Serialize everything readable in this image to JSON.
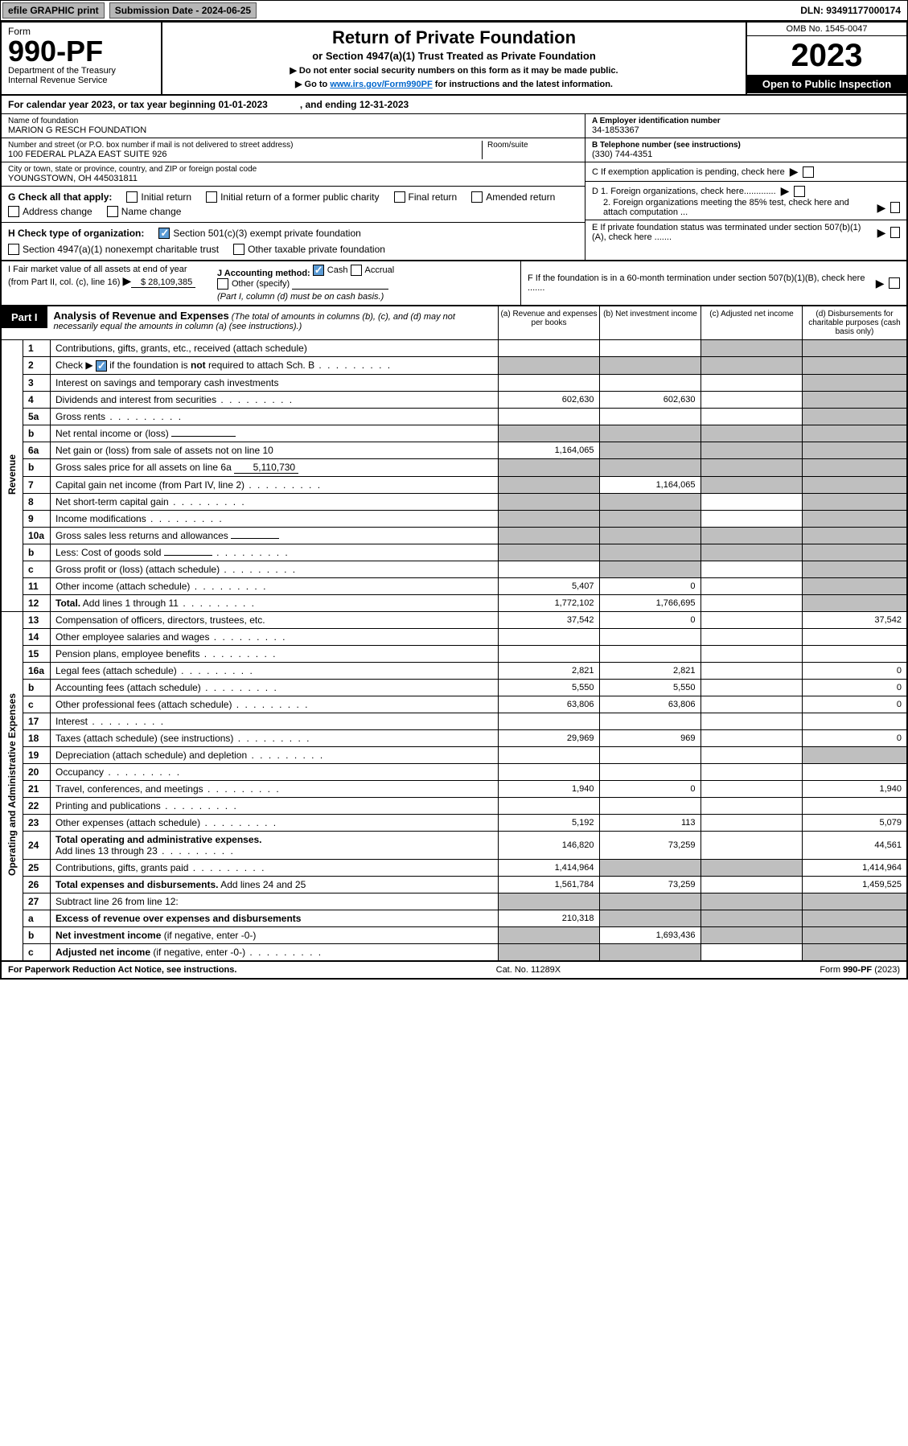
{
  "topbar": {
    "efile": "efile GRAPHIC print",
    "sub_label": "Submission Date - 2024-06-25",
    "dln": "DLN: 93491177000174"
  },
  "header": {
    "form_word": "Form",
    "form_no": "990-PF",
    "dept": "Department of the Treasury",
    "irs": "Internal Revenue Service",
    "title": "Return of Private Foundation",
    "subtitle": "or Section 4947(a)(1) Trust Treated as Private Foundation",
    "note1": "▶ Do not enter social security numbers on this form as it may be made public.",
    "note2_pre": "▶ Go to ",
    "note2_link": "www.irs.gov/Form990PF",
    "note2_post": " for instructions and the latest information.",
    "omb": "OMB No. 1545-0047",
    "year": "2023",
    "open": "Open to Public Inspection"
  },
  "cal": {
    "text": "For calendar year 2023, or tax year beginning 01-01-2023",
    "end": ", and ending 12-31-2023"
  },
  "id": {
    "name_lbl": "Name of foundation",
    "name": "MARION G RESCH FOUNDATION",
    "addr_lbl": "Number and street (or P.O. box number if mail is not delivered to street address)",
    "addr": "100 FEDERAL PLAZA EAST SUITE 926",
    "room_lbl": "Room/suite",
    "city_lbl": "City or town, state or province, country, and ZIP or foreign postal code",
    "city": "YOUNGSTOWN, OH  445031811",
    "ein_lbl": "A Employer identification number",
    "ein": "34-1853367",
    "tel_lbl": "B Telephone number (see instructions)",
    "tel": "(330) 744-4351",
    "c": "C If exemption application is pending, check here",
    "d1": "D 1. Foreign organizations, check here.............",
    "d2": "2. Foreign organizations meeting the 85% test, check here and attach computation ...",
    "e": "E  If private foundation status was terminated under section 507(b)(1)(A), check here .......",
    "f": "F  If the foundation is in a 60-month termination under section 507(b)(1)(B), check here .......",
    "g_lbl": "G Check all that apply:",
    "g_opts": [
      "Initial return",
      "Initial return of a former public charity",
      "Final return",
      "Amended return",
      "Address change",
      "Name change"
    ],
    "h_lbl": "H Check type of organization:",
    "h1": "Section 501(c)(3) exempt private foundation",
    "h2": "Section 4947(a)(1) nonexempt charitable trust",
    "h3": "Other taxable private foundation",
    "i_lbl": "I Fair market value of all assets at end of year (from Part II, col. (c), line 16)",
    "i_val": "$  28,109,385",
    "j_lbl": "J Accounting method:",
    "j_cash": "Cash",
    "j_accr": "Accrual",
    "j_other": "Other (specify)",
    "j_note": "(Part I, column (d) must be on cash basis.)"
  },
  "part1": {
    "tag": "Part I",
    "title": "Analysis of Revenue and Expenses",
    "note": "(The total of amounts in columns (b), (c), and (d) may not necessarily equal the amounts in column (a) (see instructions).)",
    "cols": {
      "a": "(a)   Revenue and expenses per books",
      "b": "(b)   Net investment income",
      "c": "(c)   Adjusted net income",
      "d": "(d)   Disbursements for charitable purposes (cash basis only)"
    }
  },
  "sections": {
    "rev": "Revenue",
    "oae": "Operating and Administrative Expenses"
  },
  "rows": [
    {
      "n": "1",
      "d": "",
      "a": "",
      "b": "",
      "c": "",
      "shade_cd": true
    },
    {
      "n": "2",
      "d": "Check ▶ ☑ if the foundation is not required to attach Sch. B",
      "dots": true,
      "shade_all": true
    },
    {
      "n": "3",
      "d": "",
      "a": "",
      "b": "",
      "c": "",
      "shade_d": true
    },
    {
      "n": "4",
      "d": "",
      "dots": true,
      "a": "602,630",
      "b": "602,630",
      "c": "",
      "shade_d": true
    },
    {
      "n": "5a",
      "d": "",
      "dots": true,
      "a": "",
      "b": "",
      "c": "",
      "shade_d": true
    },
    {
      "n": "b",
      "d": "Net rental income or (loss)",
      "inline": "",
      "shade_all": true
    },
    {
      "n": "6a",
      "d": "Net gain or (loss) from sale of assets not on line 10",
      "a": "1,164,065",
      "shade_bcd": true
    },
    {
      "n": "b",
      "d": "Gross sales price for all assets on line 6a",
      "inline": "5,110,730",
      "shade_all": true
    },
    {
      "n": "7",
      "d": "Capital gain net income (from Part IV, line 2)",
      "dots": true,
      "b": "1,164,065",
      "shade_a": true,
      "shade_cd": true
    },
    {
      "n": "8",
      "d": "Net short-term capital gain",
      "dots": true,
      "shade_ab": true,
      "shade_d": true
    },
    {
      "n": "9",
      "d": "Income modifications",
      "dots": true,
      "shade_ab": true,
      "shade_d": true
    },
    {
      "n": "10a",
      "d": "Gross sales less returns and allowances",
      "inline": "",
      "shade_all": true
    },
    {
      "n": "b",
      "d": "Less: Cost of goods sold",
      "dots": true,
      "inline": "",
      "shade_all": true
    },
    {
      "n": "c",
      "d": "Gross profit or (loss) (attach schedule)",
      "dots": true,
      "shade_b": true,
      "shade_d": true
    },
    {
      "n": "11",
      "d": "Other income (attach schedule)",
      "dots": true,
      "a": "5,407",
      "b": "0",
      "shade_d": true
    },
    {
      "n": "12",
      "d": "Total. Add lines 1 through 11",
      "dots": true,
      "bold": true,
      "a": "1,772,102",
      "b": "1,766,695",
      "shade_d": true
    },
    {
      "n": "13",
      "d": "37,542",
      "a": "37,542",
      "b": "0",
      "c": ""
    },
    {
      "n": "14",
      "d": "Other employee salaries and wages",
      "dots": true
    },
    {
      "n": "15",
      "d": "Pension plans, employee benefits",
      "dots": true
    },
    {
      "n": "16a",
      "d": "0",
      "dots": true,
      "a": "2,821",
      "b": "2,821",
      "c": ""
    },
    {
      "n": "b",
      "d": "0",
      "dots": true,
      "a": "5,550",
      "b": "5,550",
      "c": ""
    },
    {
      "n": "c",
      "d": "0",
      "dots": true,
      "a": "63,806",
      "b": "63,806",
      "c": ""
    },
    {
      "n": "17",
      "d": "Interest",
      "dots": true
    },
    {
      "n": "18",
      "d": "0",
      "dots": true,
      "a": "29,969",
      "b": "969",
      "c": ""
    },
    {
      "n": "19",
      "d": "Depreciation (attach schedule) and depletion",
      "dots": true,
      "shade_d": true
    },
    {
      "n": "20",
      "d": "Occupancy",
      "dots": true
    },
    {
      "n": "21",
      "d": "1,940",
      "dots": true,
      "a": "1,940",
      "b": "0",
      "c": ""
    },
    {
      "n": "22",
      "d": "Printing and publications",
      "dots": true
    },
    {
      "n": "23",
      "d": "5,079",
      "dots": true,
      "a": "5,192",
      "b": "113",
      "c": ""
    },
    {
      "n": "24",
      "d": "44,561",
      "dots": true,
      "bold": true,
      "a": "146,820",
      "b": "73,259",
      "c": ""
    },
    {
      "n": "25",
      "d": "1,414,964",
      "dots": true,
      "a": "1,414,964",
      "shade_bc": true
    },
    {
      "n": "26",
      "d": "1,459,525",
      "bold": true,
      "a": "1,561,784",
      "b": "73,259",
      "c": ""
    },
    {
      "n": "27",
      "d": "Subtract line 26 from line 12:",
      "shade_all": true
    },
    {
      "n": "a",
      "d": "Excess of revenue over expenses and disbursements",
      "bold": true,
      "a": "210,318",
      "shade_bcd": true
    },
    {
      "n": "b",
      "d": "Net investment income (if negative, enter -0-)",
      "bold": true,
      "b": "1,693,436",
      "shade_a": true,
      "shade_cd": true
    },
    {
      "n": "c",
      "d": "Adjusted net income (if negative, enter -0-)",
      "dots": true,
      "bold": true,
      "shade_ab": true,
      "shade_d": true
    }
  ],
  "footer": {
    "left": "For Paperwork Reduction Act Notice, see instructions.",
    "mid": "Cat. No. 11289X",
    "right": "Form 990-PF (2023)"
  }
}
